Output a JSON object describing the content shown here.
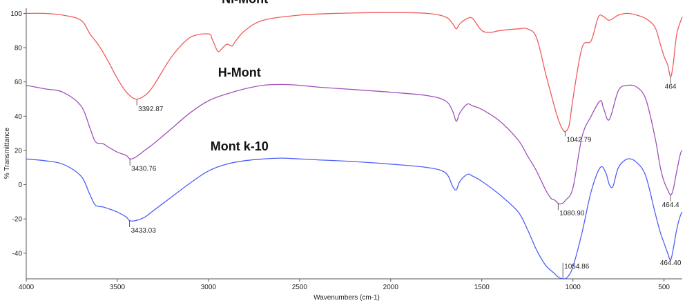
{
  "chart_data": {
    "type": "line",
    "xlabel": "Wavenumbers (cm-1)",
    "ylabel": "% Transmittance",
    "xlim": [
      4000,
      400
    ],
    "ylim": [
      -55,
      103
    ],
    "x_reversed": true,
    "grid": false,
    "x_ticks": [
      4000,
      3500,
      3000,
      2500,
      2000,
      1500,
      1000,
      500
    ],
    "x_tick_labels": [
      "4000",
      "3500",
      "3000",
      "2500",
      "2000",
      "1500",
      "1000",
      "500"
    ],
    "y_ticks": [
      100,
      80,
      60,
      40,
      20,
      0,
      -20,
      -40
    ],
    "y_tick_labels": [
      "100",
      "80",
      "60",
      "40",
      "20",
      "0",
      "-20",
      "-40"
    ],
    "series": [
      {
        "name": "Ni-Mont",
        "color": "#f05a5a",
        "x": [
          4000,
          3900,
          3800,
          3700,
          3650,
          3600,
          3550,
          3500,
          3450,
          3400,
          3350,
          3300,
          3200,
          3100,
          3000,
          2980,
          2950,
          2930,
          2900,
          2870,
          2850,
          2800,
          2700,
          2500,
          2300,
          2000,
          1800,
          1700,
          1660,
          1640,
          1620,
          1580,
          1550,
          1500,
          1450,
          1400,
          1300,
          1250,
          1200,
          1150,
          1100,
          1080,
          1060,
          1042,
          1020,
          1000,
          950,
          900,
          860,
          830,
          800,
          750,
          700,
          650,
          600,
          550,
          520,
          500,
          480,
          464,
          450,
          430,
          400
        ],
        "y": [
          100,
          100,
          99,
          96,
          88,
          81,
          72,
          62,
          54,
          50,
          52,
          58,
          75,
          86,
          88,
          85,
          78,
          79,
          82,
          81,
          84,
          90,
          96,
          99,
          100,
          100.5,
          100,
          98,
          94,
          91,
          94,
          97,
          97,
          90,
          89,
          90,
          91,
          91,
          86,
          65,
          45,
          38,
          33,
          31,
          35,
          50,
          80,
          84,
          98,
          98,
          96,
          99,
          100,
          99,
          97,
          92,
          82,
          75,
          70,
          63,
          70,
          88,
          98
        ]
      },
      {
        "name": "H-Mont",
        "color": "#a050b8",
        "x": [
          4000,
          3900,
          3800,
          3700,
          3650,
          3620,
          3580,
          3550,
          3500,
          3450,
          3430,
          3400,
          3350,
          3300,
          3200,
          3100,
          3000,
          2900,
          2800,
          2700,
          2600,
          2500,
          2400,
          2200,
          2000,
          1800,
          1700,
          1660,
          1640,
          1620,
          1580,
          1550,
          1500,
          1400,
          1300,
          1250,
          1200,
          1150,
          1120,
          1100,
          1080,
          1060,
          1040,
          1000,
          950,
          900,
          850,
          830,
          800,
          750,
          700,
          650,
          600,
          550,
          520,
          500,
          480,
          464,
          450,
          430,
          410,
          400
        ],
        "y": [
          58,
          56,
          54,
          46,
          33,
          25,
          24,
          22,
          19,
          17,
          15,
          16,
          20,
          24,
          33,
          42,
          49,
          53,
          56,
          58,
          58.5,
          58,
          57,
          55.5,
          54,
          52,
          49,
          43,
          37,
          42,
          47,
          46,
          44,
          37,
          26,
          17,
          8,
          -3,
          -8,
          -9,
          -11,
          -11,
          -9,
          -2,
          28,
          40,
          49,
          44,
          38,
          55,
          58,
          57,
          50,
          28,
          10,
          2,
          -3,
          -6,
          -3,
          8,
          18,
          20
        ]
      },
      {
        "name": "Mont k-10",
        "color": "#4f5ff5",
        "x": [
          4000,
          3900,
          3800,
          3700,
          3650,
          3620,
          3580,
          3550,
          3500,
          3450,
          3433,
          3400,
          3350,
          3300,
          3200,
          3100,
          3000,
          2900,
          2800,
          2700,
          2600,
          2500,
          2400,
          2200,
          2000,
          1800,
          1700,
          1660,
          1640,
          1620,
          1580,
          1550,
          1500,
          1400,
          1300,
          1250,
          1200,
          1150,
          1100,
          1080,
          1054,
          1030,
          1000,
          950,
          900,
          850,
          820,
          800,
          780,
          750,
          700,
          650,
          600,
          550,
          520,
          500,
          480,
          464,
          450,
          430,
          410,
          400
        ],
        "y": [
          15,
          14,
          12,
          5,
          -6,
          -12,
          -13,
          -14,
          -16,
          -19,
          -21,
          -21,
          -19,
          -15,
          -7,
          1,
          8,
          12,
          14,
          15,
          15.5,
          15,
          14.5,
          13.5,
          12,
          10,
          7,
          -1,
          -3,
          2,
          6,
          5,
          2,
          -6,
          -16,
          -26,
          -38,
          -47,
          -52,
          -54,
          -55,
          -54,
          -48,
          -28,
          -4,
          10,
          7,
          0,
          -1,
          10,
          15,
          13,
          5,
          -16,
          -28,
          -34,
          -40,
          -44,
          -38,
          -26,
          -18,
          -16
        ]
      }
    ],
    "series_titles": [
      {
        "text": "Ni-Mont",
        "x": 2800,
        "y": 106
      },
      {
        "text": "H-Mont",
        "x": 2830,
        "y": 63
      },
      {
        "text": "Mont k-10",
        "x": 2830,
        "y": 20
      }
    ],
    "peak_labels": [
      {
        "text": "3392.87",
        "series": 0,
        "x": 3393,
        "y": 50,
        "label_y": 43
      },
      {
        "text": "1042.79",
        "series": 0,
        "x": 1043,
        "y": 31,
        "label_y": 25
      },
      {
        "text": "464",
        "series": 0,
        "x": 464,
        "y": 63,
        "label_y": 56
      },
      {
        "text": "3430.76",
        "series": 1,
        "x": 3431,
        "y": 15,
        "label_y": 8
      },
      {
        "text": "1080.90",
        "series": 1,
        "x": 1081,
        "y": -11,
        "label_y": -18
      },
      {
        "text": "464.4",
        "series": 1,
        "x": 464,
        "y": -6,
        "label_y": -13
      },
      {
        "text": "3433.03",
        "series": 2,
        "x": 3433,
        "y": -21,
        "label_y": -28
      },
      {
        "text": "1054.86",
        "series": 2,
        "x": 1055,
        "y": -55,
        "label_y": -49
      },
      {
        "text": "464.40",
        "series": 2,
        "x": 464,
        "y": -44,
        "label_y": -47
      }
    ]
  }
}
